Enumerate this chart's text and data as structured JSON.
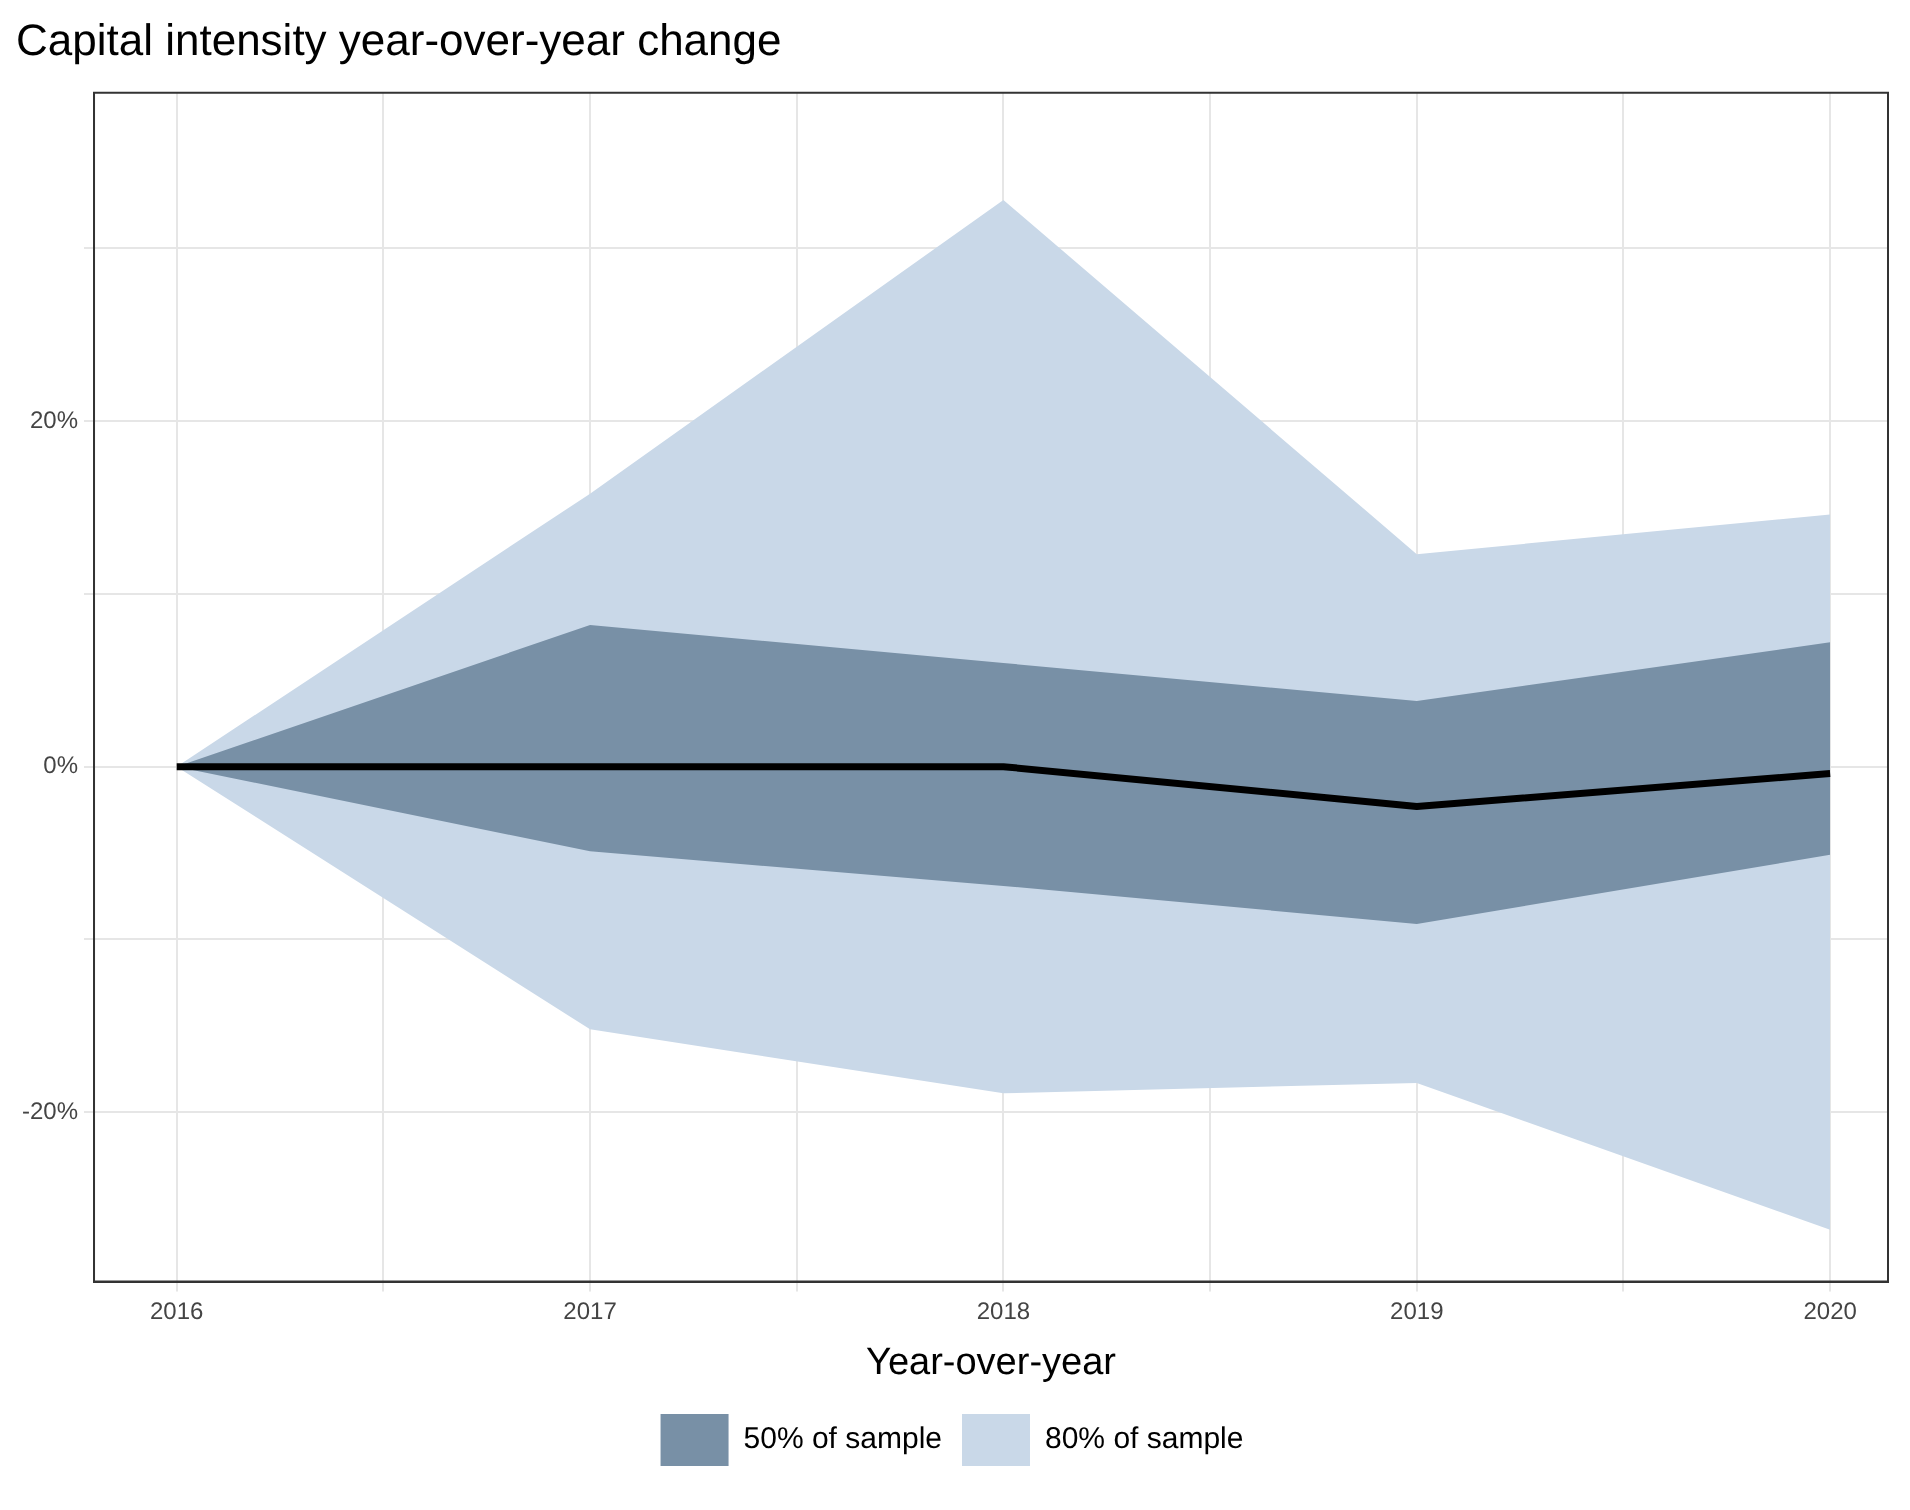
{
  "chart_data": {
    "type": "line",
    "title": "Capital intensity year-over-year change",
    "xlabel": "Year-over-year",
    "x": [
      2016,
      2017,
      2018,
      2019,
      2020
    ],
    "series": [
      {
        "name": "80% of sample",
        "type": "area",
        "color": "#c9d8e8",
        "values": [
          null,
          null,
          null,
          null,
          null
        ],
        "lower": [
          0,
          -15.2,
          -18.9,
          -18.3,
          -26.8
        ],
        "upper": [
          0,
          15.8,
          32.8,
          12.3,
          14.6
        ]
      },
      {
        "name": "50% of sample",
        "type": "area",
        "color": "#7890a6",
        "values": [
          null,
          null,
          null,
          null,
          null
        ],
        "lower": [
          0,
          -4.9,
          -6.9,
          -9.1,
          -5.1
        ],
        "upper": [
          0,
          8.2,
          6.0,
          3.8,
          7.2
        ]
      },
      {
        "type": "line",
        "color": "#000000",
        "values": [
          0,
          0,
          0,
          -2.3,
          -0.4
        ]
      }
    ],
    "xlim": [
      2015.8,
      2020.14
    ],
    "xticks": [
      2016,
      {
        "value": 2016.5,
        "label": null
      },
      2017,
      {
        "value": 2017.5,
        "label": null
      },
      2018,
      {
        "value": 2018.5,
        "label": null
      },
      2019,
      {
        "value": 2019.5,
        "label": null
      },
      2020
    ],
    "ylim": [
      -29.8,
      39
    ],
    "yticks": [
      {
        "value": -20,
        "label": "-20%"
      },
      {
        "value": -10,
        "label": null
      },
      {
        "value": 0,
        "label": "0%"
      },
      {
        "value": 10,
        "label": null
      },
      {
        "value": 20,
        "label": "20%"
      },
      {
        "value": 30,
        "label": null
      }
    ],
    "grid": true,
    "legend": "bottom",
    "marker": "none",
    "line_style": "solid"
  }
}
